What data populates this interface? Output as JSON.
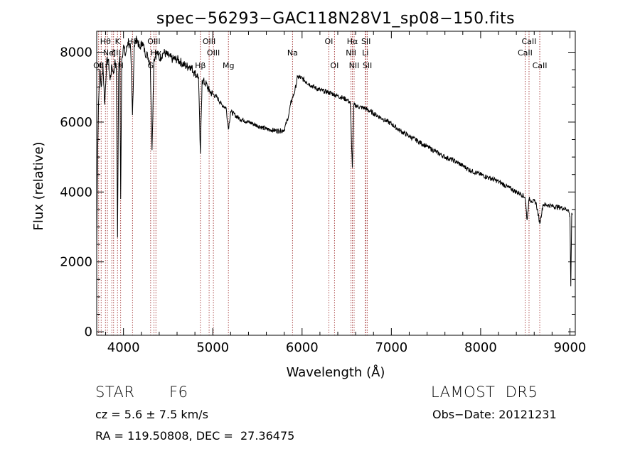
{
  "chart_data": {
    "type": "line",
    "title": "spec−56293−GAC118N28V1_sp08−150.fits",
    "xlabel": "Wavelength (Å)",
    "ylabel": "Flux (relative)",
    "xlim": [
      3700,
      9060
    ],
    "ylim": [
      -100,
      8600
    ],
    "x_ticks": [
      4000,
      5000,
      6000,
      7000,
      8000,
      9000
    ],
    "y_ticks": [
      0,
      2000,
      4000,
      6000,
      8000
    ],
    "grid": false,
    "series": [
      {
        "x": [
          3700,
          3710,
          3720,
          3735,
          3750,
          3770,
          3790,
          3810,
          3830,
          3850,
          3870,
          3890,
          3905,
          3920,
          3933,
          3945,
          3960,
          3968,
          3980,
          4000,
          4020,
          4050,
          4080,
          4101,
          4120,
          4150,
          4180,
          4210,
          4240,
          4270,
          4300,
          4320,
          4340,
          4360,
          4380,
          4400,
          4450,
          4500,
          4550,
          4600,
          4650,
          4700,
          4750,
          4800,
          4840,
          4861,
          4880,
          4920,
          4960,
          5000,
          5050,
          5100,
          5150,
          5175,
          5200,
          5250,
          5300,
          5350,
          5400,
          5450,
          5500,
          5550,
          5600,
          5650,
          5700,
          5750,
          5800,
          5850,
          5870,
          5893,
          5920,
          5950,
          6000,
          6050,
          6100,
          6150,
          6200,
          6250,
          6300,
          6350,
          6400,
          6450,
          6500,
          6540,
          6563,
          6580,
          6620,
          6700,
          6800,
          6900,
          7000,
          7100,
          7200,
          7300,
          7400,
          7500,
          7600,
          7700,
          7800,
          7900,
          8000,
          8100,
          8200,
          8300,
          8400,
          8450,
          8498,
          8520,
          8542,
          8570,
          8620,
          8662,
          8700,
          8800,
          8900,
          8980,
          9000,
          9010,
          9020,
          9030
        ],
        "y": [
          2300,
          5200,
          6500,
          7500,
          7000,
          7600,
          6500,
          7700,
          7800,
          7200,
          7600,
          7400,
          7800,
          7500,
          2700,
          7400,
          7900,
          3800,
          7800,
          8200,
          7900,
          8300,
          8100,
          6200,
          8200,
          8400,
          8100,
          8300,
          8000,
          7900,
          7700,
          5200,
          7800,
          7900,
          8000,
          7800,
          8000,
          7900,
          7800,
          7800,
          7700,
          7600,
          7600,
          7400,
          7300,
          5100,
          7200,
          7100,
          6900,
          6800,
          6700,
          6500,
          6400,
          5800,
          6300,
          6200,
          6100,
          6050,
          6000,
          5950,
          5900,
          5850,
          5800,
          5780,
          5760,
          5750,
          5780,
          6200,
          6500,
          6700,
          6900,
          7300,
          7250,
          7150,
          7050,
          6980,
          6920,
          6880,
          6850,
          6800,
          6750,
          6700,
          6650,
          6550,
          4700,
          6500,
          6450,
          6400,
          6250,
          6100,
          5950,
          5750,
          5600,
          5450,
          5300,
          5150,
          5000,
          4900,
          4750,
          4600,
          4500,
          4400,
          4300,
          4150,
          4000,
          3950,
          3850,
          3200,
          3800,
          3750,
          3700,
          3100,
          3650,
          3600,
          3550,
          3500,
          3300,
          1300,
          3400,
          3350
        ]
      }
    ],
    "lines": [
      {
        "x": 3722,
        "label": "OII",
        "row": 3
      },
      {
        "x": 3750,
        "label": "θ",
        "row": 3
      },
      {
        "x": 3798,
        "label": "Hθ",
        "row": 1
      },
      {
        "x": 3820,
        "label": "η",
        "row": 3
      },
      {
        "x": 3869,
        "label": "NeIII",
        "row": 2
      },
      {
        "x": 3889,
        "label": "ζ",
        "row": 2
      },
      {
        "x": 3933,
        "label": "K",
        "row": 1
      },
      {
        "x": 3968,
        "label": "H",
        "row": 3
      },
      {
        "x": 4101,
        "label": "Hδ",
        "row": 1
      },
      {
        "x": 4304,
        "label": "G",
        "row": 3
      },
      {
        "x": 4341,
        "label": "OIII",
        "row": 1
      },
      {
        "x": 4363,
        "label": "Hγ",
        "row": 2
      },
      {
        "x": 4861,
        "label": "Hβ",
        "row": 3
      },
      {
        "x": 4959,
        "label": "OIII",
        "row": 1
      },
      {
        "x": 5007,
        "label": "OIII",
        "row": 2
      },
      {
        "x": 5175,
        "label": "Mg",
        "row": 3
      },
      {
        "x": 5893,
        "label": "Na",
        "row": 2
      },
      {
        "x": 6300,
        "label": "OI",
        "row": 1
      },
      {
        "x": 6363,
        "label": "OI",
        "row": 3
      },
      {
        "x": 6548,
        "label": "NII",
        "row": 2
      },
      {
        "x": 6563,
        "label": "Hα",
        "row": 1
      },
      {
        "x": 6583,
        "label": "NII",
        "row": 3
      },
      {
        "x": 6708,
        "label": "Li",
        "row": 2
      },
      {
        "x": 6716,
        "label": "SII",
        "row": 1
      },
      {
        "x": 6731,
        "label": "SII",
        "row": 3
      },
      {
        "x": 8498,
        "label": "CaII",
        "row": 2
      },
      {
        "x": 8542,
        "label": "CaII",
        "row": 1
      },
      {
        "x": 8662,
        "label": "CaII",
        "row": 3
      }
    ]
  },
  "info": {
    "class_label": "STAR",
    "subclass": "F6",
    "survey": "LAMOST  DR5",
    "cz": "cz = 5.6 ± 7.5 km/s",
    "obs_date": "Obs−Date: 20121231",
    "coords": "RA = 119.50808, DEC =  27.36475"
  }
}
